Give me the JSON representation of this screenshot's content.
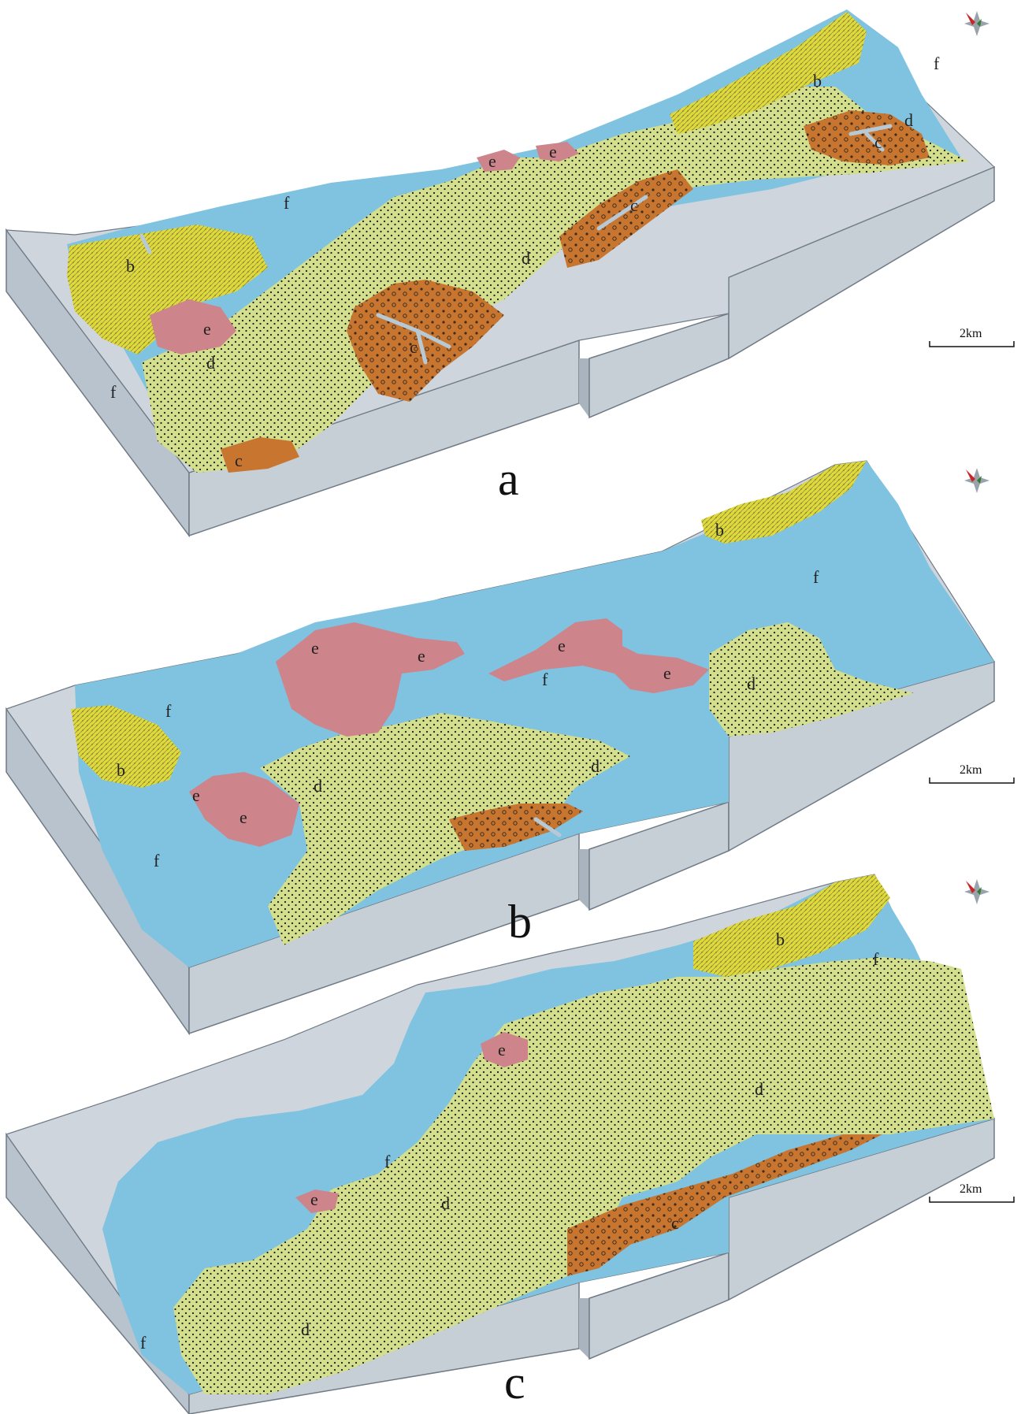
{
  "figure": {
    "panels": [
      {
        "id": "a",
        "label": "a",
        "scale_bar": "2km",
        "zones": [
          {
            "label": "f",
            "kind": "f"
          },
          {
            "label": "f",
            "kind": "f"
          },
          {
            "label": "f",
            "kind": "f"
          },
          {
            "label": "b",
            "kind": "b"
          },
          {
            "label": "b",
            "kind": "b"
          },
          {
            "label": "e",
            "kind": "e"
          },
          {
            "label": "e",
            "kind": "e"
          },
          {
            "label": "e",
            "kind": "e"
          },
          {
            "label": "d",
            "kind": "d"
          },
          {
            "label": "d",
            "kind": "d"
          },
          {
            "label": "d",
            "kind": "d"
          },
          {
            "label": "c",
            "kind": "c"
          },
          {
            "label": "c",
            "kind": "c"
          },
          {
            "label": "c",
            "kind": "c"
          },
          {
            "label": "c",
            "kind": "c"
          }
        ]
      },
      {
        "id": "b",
        "label": "b",
        "scale_bar": "2km",
        "zones": [
          {
            "label": "f",
            "kind": "f"
          },
          {
            "label": "f",
            "kind": "f"
          },
          {
            "label": "f",
            "kind": "f"
          },
          {
            "label": "f",
            "kind": "f"
          },
          {
            "label": "b",
            "kind": "b"
          },
          {
            "label": "b",
            "kind": "b"
          },
          {
            "label": "e",
            "kind": "e"
          },
          {
            "label": "e",
            "kind": "e"
          },
          {
            "label": "e",
            "kind": "e"
          },
          {
            "label": "e",
            "kind": "e"
          },
          {
            "label": "e",
            "kind": "e"
          },
          {
            "label": "e",
            "kind": "e"
          },
          {
            "label": "d",
            "kind": "d"
          },
          {
            "label": "d",
            "kind": "d"
          },
          {
            "label": "d",
            "kind": "d"
          }
        ]
      },
      {
        "id": "c",
        "label": "c",
        "scale_bar": "2km",
        "zones": [
          {
            "label": "f",
            "kind": "f"
          },
          {
            "label": "f",
            "kind": "f"
          },
          {
            "label": "f",
            "kind": "f"
          },
          {
            "label": "b",
            "kind": "b"
          },
          {
            "label": "e",
            "kind": "e"
          },
          {
            "label": "e",
            "kind": "e"
          },
          {
            "label": "d",
            "kind": "d"
          },
          {
            "label": "d",
            "kind": "d"
          },
          {
            "label": "d",
            "kind": "d"
          },
          {
            "label": "c",
            "kind": "c"
          }
        ]
      }
    ],
    "colors": {
      "f": "#7fc3e1",
      "b": "#dfd93a",
      "e": "#cd848a",
      "d": "#d3df8c",
      "c": "#c7752f",
      "block_side": "#b9c3cd",
      "block_face": "#ced5dc",
      "stream": "#b8c9d6",
      "dots": "#1a1a1a"
    },
    "compass_icon": "compass-rose-icon"
  }
}
